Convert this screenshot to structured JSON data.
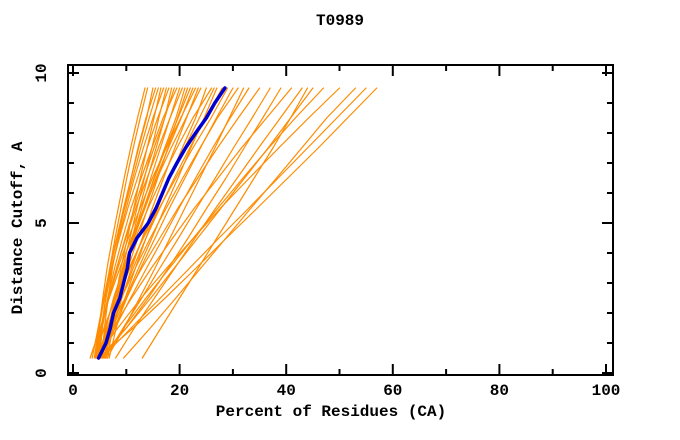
{
  "colors": {
    "models": "#ff8c00",
    "highlight": "#0000cd",
    "axis": "#000000",
    "background": "#ffffff"
  },
  "axes": {
    "x_ticks_labeled": [
      0,
      20,
      40,
      60,
      80,
      100
    ],
    "x_ticks_minor": [
      10,
      30,
      50,
      70,
      90
    ],
    "y_ticks_labeled": [
      0,
      5,
      10
    ],
    "y_ticks_minor": [
      1,
      2,
      3,
      4,
      6,
      7,
      8,
      9
    ],
    "xlim": [
      0,
      100
    ],
    "ylim": [
      0,
      10
    ]
  },
  "chart_data": {
    "type": "line",
    "title": "T0989",
    "xlabel": "Percent of Residues (CA)",
    "ylabel": "Distance Cutoff, A",
    "xlim": [
      0,
      100
    ],
    "ylim": [
      0,
      10
    ],
    "grid": false,
    "legend": "none",
    "highlight_series": {
      "name": "highlighted-model",
      "color": "#0000cd",
      "cutoffs": [
        0.5,
        1.0,
        1.5,
        2.0,
        2.5,
        3.0,
        3.5,
        4.0,
        4.5,
        5.0,
        5.5,
        6.0,
        6.5,
        7.0,
        7.5,
        8.0,
        8.5,
        9.0,
        9.5
      ],
      "percents": [
        4.8,
        6.2,
        7.0,
        7.6,
        8.8,
        9.5,
        10.2,
        10.6,
        12.0,
        14.1,
        15.6,
        16.8,
        18.0,
        19.5,
        21.1,
        23.0,
        25.0,
        26.6,
        28.5
      ]
    },
    "model_series": {
      "name": "server-models",
      "color": "#ff8c00",
      "cutoffs": [
        0.5,
        1.5,
        2.5,
        3.5,
        4.5,
        5.5,
        6.5,
        7.5,
        8.5,
        9.5
      ],
      "percents_per_model": [
        [
          4.5,
          4.9,
          5.6,
          6.4,
          7.4,
          8.5,
          9.6,
          10.8,
          12.1,
          13.5
        ],
        [
          5.0,
          5.4,
          6.1,
          6.9,
          7.9,
          9.0,
          10.1,
          11.3,
          12.6,
          14.0
        ],
        [
          4.0,
          4.8,
          5.8,
          6.9,
          8.2,
          9.5,
          10.9,
          12.3,
          13.8,
          15.0
        ],
        [
          5.5,
          5.9,
          6.6,
          7.4,
          8.5,
          9.6,
          10.9,
          12.2,
          13.7,
          15.5
        ],
        [
          4.2,
          4.9,
          5.9,
          7.0,
          8.3,
          9.7,
          11.2,
          12.7,
          14.3,
          16.0
        ],
        [
          6.0,
          6.9,
          8.0,
          9.0,
          10.2,
          11.4,
          12.6,
          13.9,
          15.2,
          16.5
        ],
        [
          4.8,
          5.3,
          6.2,
          7.3,
          8.6,
          10.0,
          11.5,
          13.2,
          15.0,
          17.0
        ],
        [
          5.2,
          6.6,
          7.9,
          9.3,
          10.7,
          12.0,
          13.4,
          14.8,
          16.1,
          17.5
        ],
        [
          3.6,
          4.7,
          5.8,
          7.2,
          8.7,
          10.3,
          12.1,
          13.9,
          15.9,
          18.0
        ],
        [
          6.5,
          7.4,
          8.5,
          9.7,
          11.1,
          12.5,
          14.0,
          15.6,
          17.2,
          18.5
        ],
        [
          4.5,
          5.4,
          6.7,
          8.2,
          9.8,
          11.5,
          13.3,
          15.2,
          17.2,
          19.0
        ],
        [
          5.0,
          5.5,
          6.5,
          7.8,
          9.3,
          10.9,
          12.8,
          14.8,
          16.9,
          19.5
        ],
        [
          5.8,
          6.9,
          8.3,
          9.7,
          11.3,
          12.9,
          14.6,
          16.4,
          18.2,
          20.0
        ],
        [
          4.3,
          5.2,
          6.6,
          8.2,
          9.9,
          11.8,
          13.9,
          16.0,
          18.2,
          20.5
        ],
        [
          5.5,
          6.6,
          8.0,
          9.7,
          11.4,
          13.3,
          15.2,
          17.2,
          19.3,
          21.0
        ],
        [
          4.7,
          6.6,
          8.4,
          10.3,
          12.2,
          14.0,
          15.9,
          17.8,
          19.6,
          21.5
        ],
        [
          6.2,
          7.0,
          8.3,
          9.8,
          11.5,
          13.3,
          15.3,
          17.4,
          19.7,
          22.0
        ],
        [
          5.0,
          6.1,
          7.7,
          9.4,
          11.4,
          13.5,
          15.6,
          17.9,
          20.3,
          22.5
        ],
        [
          4.4,
          5.3,
          6.7,
          8.4,
          10.4,
          12.6,
          14.9,
          17.5,
          20.2,
          23.0
        ],
        [
          5.9,
          7.5,
          9.2,
          11.0,
          13.0,
          14.9,
          17.0,
          19.1,
          21.3,
          23.5
        ],
        [
          3.2,
          5.1,
          6.8,
          8.8,
          11.0,
          13.3,
          15.8,
          18.4,
          21.2,
          24.0
        ],
        [
          6.8,
          8.1,
          9.8,
          11.7,
          13.7,
          15.9,
          18.2,
          20.5,
          23.0,
          25.0
        ],
        [
          5.3,
          6.2,
          7.6,
          9.5,
          11.7,
          14.1,
          16.7,
          19.5,
          22.5,
          26.0
        ],
        [
          4.6,
          6.4,
          8.4,
          10.7,
          13.1,
          15.6,
          18.2,
          20.9,
          23.7,
          26.5
        ],
        [
          5.0,
          7.4,
          9.9,
          12.3,
          14.8,
          17.2,
          19.7,
          22.1,
          24.6,
          27.0
        ],
        [
          6.0,
          7.3,
          9.1,
          11.3,
          13.7,
          16.3,
          19.0,
          21.9,
          24.9,
          28.0
        ],
        [
          4.2,
          5.8,
          8.0,
          10.5,
          13.2,
          16.2,
          19.3,
          22.5,
          25.9,
          29.0
        ],
        [
          5.6,
          7.8,
          10.1,
          12.7,
          15.4,
          18.1,
          21.0,
          23.9,
          26.9,
          30.0
        ],
        [
          4.9,
          6.7,
          9.1,
          11.7,
          14.5,
          17.5,
          20.6,
          23.8,
          27.1,
          31.0
        ],
        [
          6.4,
          9.6,
          12.5,
          15.4,
          18.2,
          21.0,
          23.8,
          26.6,
          29.3,
          32.0
        ],
        [
          5.1,
          7.9,
          10.8,
          13.8,
          16.9,
          19.9,
          23.0,
          26.2,
          29.5,
          33.0
        ],
        [
          4.4,
          6.8,
          9.8,
          12.9,
          16.3,
          19.7,
          23.4,
          27.1,
          31.0,
          35.0
        ],
        [
          6.0,
          9.4,
          12.9,
          16.3,
          19.8,
          23.2,
          26.7,
          30.1,
          33.6,
          37.0
        ],
        [
          5.2,
          10.0,
          14.1,
          17.9,
          21.6,
          25.1,
          28.7,
          32.1,
          35.6,
          39.0
        ],
        [
          4.6,
          7.5,
          11.0,
          14.7,
          18.7,
          22.8,
          27.2,
          31.6,
          36.3,
          41.0
        ],
        [
          8.0,
          11.5,
          15.3,
          19.1,
          22.9,
          26.8,
          30.8,
          34.8,
          38.9,
          43.0
        ],
        [
          5.0,
          10.0,
          14.6,
          19.0,
          23.4,
          27.8,
          32.2,
          36.6,
          40.8,
          45.0
        ],
        [
          5.8,
          9.5,
          13.7,
          18.1,
          22.6,
          27.2,
          31.9,
          36.7,
          41.7,
          47.0
        ],
        [
          4.3,
          8.4,
          12.8,
          17.6,
          22.6,
          27.7,
          33.1,
          38.6,
          44.2,
          50.0
        ],
        [
          9.5,
          14.5,
          19.3,
          24.0,
          28.7,
          33.4,
          38.2,
          42.9,
          47.6,
          53.0
        ],
        [
          5.4,
          10.9,
          16.4,
          21.9,
          27.4,
          33.0,
          38.5,
          44.0,
          49.5,
          55.0
        ],
        [
          4.8,
          11.3,
          17.3,
          23.1,
          28.8,
          34.6,
          40.3,
          46.0,
          51.5,
          57.0
        ],
        [
          13.0,
          16.5,
          20.0,
          23.5,
          27.0,
          30.5,
          34.0,
          37.5,
          40.8,
          44.0
        ]
      ]
    }
  }
}
